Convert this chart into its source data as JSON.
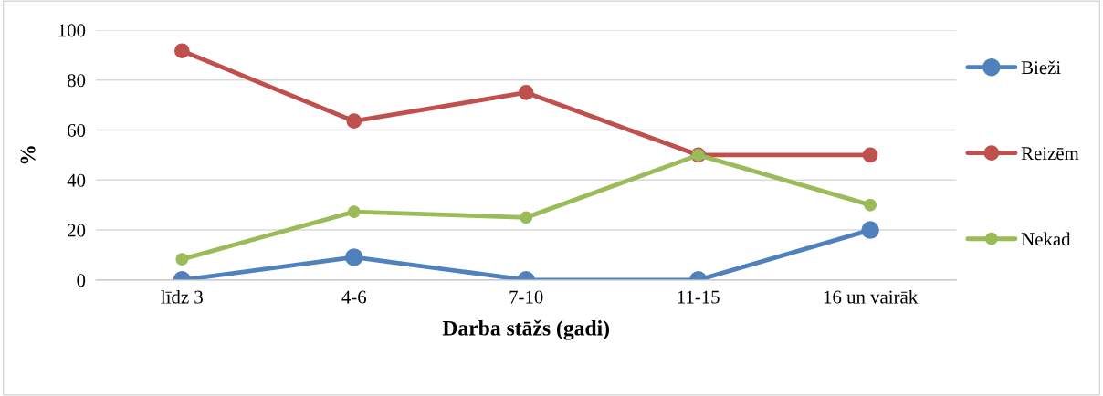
{
  "chart_data": {
    "type": "line",
    "xlabel": "Darba stāžs (gadi)",
    "ylabel": "%",
    "categories": [
      "līdz 3",
      "4-6",
      "7-10",
      "11-15",
      "16 un vairāk"
    ],
    "series": [
      {
        "name": "Bieži",
        "color": "#4f81bd",
        "values": [
          0,
          9.1,
          0,
          0,
          20
        ]
      },
      {
        "name": "Reizēm",
        "color": "#c0504d",
        "values": [
          91.7,
          63.6,
          75,
          50,
          50
        ]
      },
      {
        "name": "Nekad",
        "color": "#9bbb59",
        "values": [
          8.3,
          27.3,
          25,
          50,
          30
        ]
      }
    ],
    "ylim": [
      0,
      100
    ],
    "yticks": [
      0,
      20,
      40,
      60,
      80,
      100
    ],
    "grid": "y",
    "legend": "right",
    "marker": "circle",
    "line_style": "solid"
  }
}
